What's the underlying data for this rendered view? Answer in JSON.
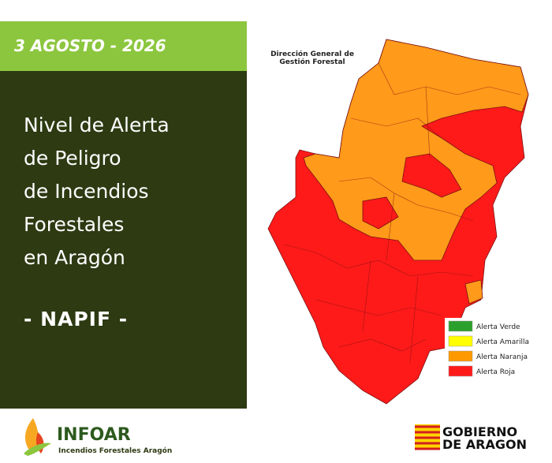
{
  "header": {
    "date": "3 AGOSTO - 2026"
  },
  "panel": {
    "title_lines": [
      "Nivel de Alerta",
      "de Peligro",
      "de Incendios",
      "Forestales",
      "en Aragón"
    ],
    "subtitle": "- NAPIF -"
  },
  "map": {
    "source": [
      "Dirección General de",
      "Gestión Forestal"
    ],
    "legend": [
      {
        "label": "Alerta Verde",
        "color": "#2ca02c"
      },
      {
        "label": "Alerta Amarilla",
        "color": "#ffff00"
      },
      {
        "label": "Alerta Naranja",
        "color": "#ff9900"
      },
      {
        "label": "Alerta Roja",
        "color": "#ff1a1a"
      }
    ]
  },
  "footer": {
    "infoar": {
      "name": "INFOAR",
      "tagline": "Incendios Forestales Aragón"
    },
    "gobierno": [
      "GOBIERNO",
      "DE ARAGON"
    ]
  }
}
